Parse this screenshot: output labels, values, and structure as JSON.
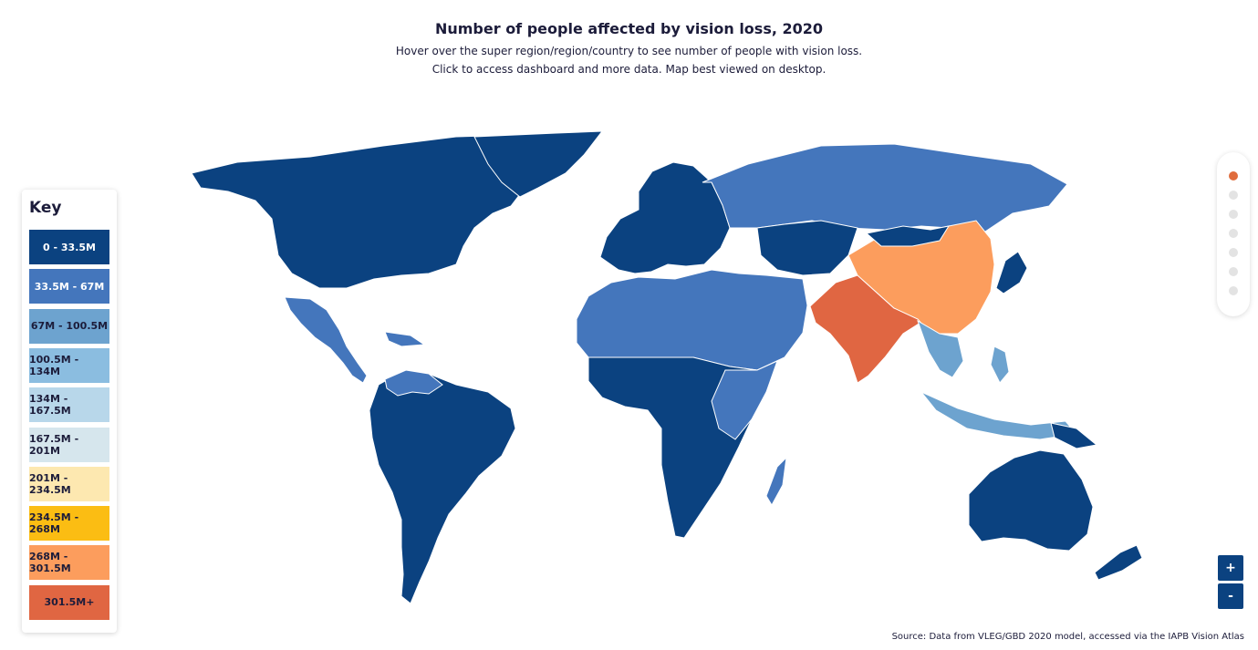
{
  "header": {
    "title": "Number of people affected by vision loss, 2020",
    "subtitle_line1": "Hover over the super region/region/country to see number of people with vision loss.",
    "subtitle_line2": "Click to access dashboard and more data. Map best viewed on desktop."
  },
  "key": {
    "title": "Key",
    "items": [
      {
        "label": "0 - 33.5M",
        "color": "#0b4280",
        "text_color": "#ffffff"
      },
      {
        "label": "33.5M - 67M",
        "color": "#4476bc",
        "text_color": "#ffffff"
      },
      {
        "label": "67M - 100.5M",
        "color": "#6da3cf",
        "text_color": "#1c1c3a"
      },
      {
        "label": "100.5M - 134M",
        "color": "#8bbde0",
        "text_color": "#1c1c3a"
      },
      {
        "label": "134M - 167.5M",
        "color": "#b8d7ea",
        "text_color": "#1c1c3a"
      },
      {
        "label": "167.5M - 201M",
        "color": "#d6e6ed",
        "text_color": "#1c1c3a"
      },
      {
        "label": "201M - 234.5M",
        "color": "#fde8b0",
        "text_color": "#1c1c3a"
      },
      {
        "label": "234.5M - 268M",
        "color": "#fbbd13",
        "text_color": "#1c1c3a"
      },
      {
        "label": "268M - 301.5M",
        "color": "#fc9d5d",
        "text_color": "#1c1c3a"
      },
      {
        "label": "301.5M+",
        "color": "#e06642",
        "text_color": "#1c1c3a"
      }
    ]
  },
  "map": {
    "no_data_color": "#d9d9d9",
    "regions": [
      {
        "name": "North America",
        "bin": "0 - 33.5M",
        "color": "#0b4280"
      },
      {
        "name": "Central America & Caribbean",
        "bin": "33.5M - 67M",
        "color": "#4476bc"
      },
      {
        "name": "South America",
        "bin": "0 - 33.5M",
        "color": "#0b4280"
      },
      {
        "name": "Europe",
        "bin": "0 - 33.5M",
        "color": "#0b4280"
      },
      {
        "name": "Russia & Central Asia",
        "bin": "33.5M - 67M",
        "color": "#4476bc"
      },
      {
        "name": "North Africa & Middle East",
        "bin": "33.5M - 67M",
        "color": "#4476bc"
      },
      {
        "name": "Sub-Saharan Africa",
        "bin": "0 - 33.5M",
        "color": "#0b4280"
      },
      {
        "name": "South Asia",
        "bin": "301.5M+",
        "color": "#e06642"
      },
      {
        "name": "East Asia",
        "bin": "268M - 301.5M",
        "color": "#fc9d5d"
      },
      {
        "name": "Southeast Asia",
        "bin": "67M - 100.5M",
        "color": "#6da3cf"
      },
      {
        "name": "Oceania",
        "bin": "0 - 33.5M",
        "color": "#0b4280"
      }
    ]
  },
  "navigation": {
    "dots": [
      {
        "name": "dot-1",
        "active": true
      },
      {
        "name": "dot-2",
        "active": false
      },
      {
        "name": "dot-3",
        "active": false
      },
      {
        "name": "dot-4",
        "active": false
      },
      {
        "name": "dot-5",
        "active": false
      },
      {
        "name": "dot-6",
        "active": false
      },
      {
        "name": "dot-7",
        "active": false
      }
    ]
  },
  "zoom": {
    "in_label": "+",
    "out_label": "-"
  },
  "source": "Source: Data from VLEG/GBD 2020 model, accessed via the IAPB Vision Atlas"
}
